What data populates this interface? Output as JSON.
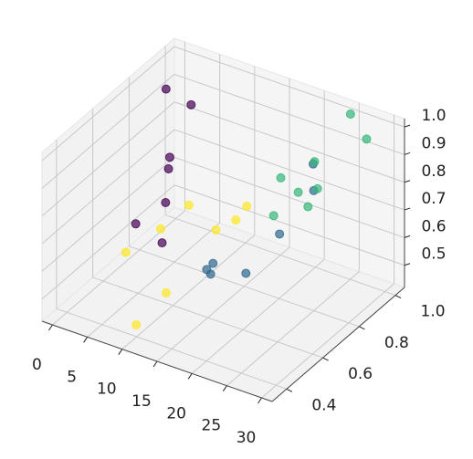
{
  "chart_data": {
    "type": "scatter3d",
    "xlim": [
      -1.5,
      31.5
    ],
    "ylim": [
      0.32,
      1.05
    ],
    "zlim": [
      0.42,
      1.03
    ],
    "xticks": [
      0,
      5,
      10,
      15,
      20,
      25,
      30
    ],
    "yticks": [
      0.4,
      0.6,
      0.8,
      {
        "value": 1.0,
        "label": "1.0"
      }
    ],
    "zticks": [
      0.5,
      0.6,
      0.7,
      0.8,
      0.9,
      {
        "value": 1.0,
        "label": "1.0"
      }
    ],
    "grid": true,
    "series": [
      {
        "color": "#fde725",
        "x": [
          10.2,
          4.8,
          12.4,
          5.9,
          6.3,
          12.0,
          11.2,
          10.7
        ],
        "y": [
          0.39,
          0.54,
          0.47,
          0.69,
          0.83,
          0.76,
          0.9,
          0.98
        ],
        "z": [
          0.47,
          0.6,
          0.56,
          0.61,
          0.62,
          0.62,
          0.57,
          0.57
        ]
      },
      {
        "color": "#440154",
        "x": [
          1.2,
          4.8,
          7.2,
          9.1,
          10.5,
          4.4,
          10.0
        ],
        "y": [
          0.9,
          0.9,
          0.69,
          0.61,
          0.54,
          0.61,
          0.54
        ],
        "z": [
          0.955,
          0.93,
          0.88,
          0.9,
          0.83,
          0.66,
          0.68
        ]
      },
      {
        "color": "#31688e",
        "x": [
          17.3,
          16.4,
          18.0,
          20.2,
          19.3,
          22.3,
          24.2
        ],
        "y": [
          0.54,
          0.54,
          0.5,
          0.61,
          0.83,
          0.9,
          0.83
        ],
        "z": [
          0.67,
          0.64,
          0.66,
          0.62,
          0.63,
          0.87,
          0.83
        ]
      },
      {
        "color": "#35b779",
        "x": [
          24.8,
          27.1,
          22.5,
          21.3,
          23.8,
          23.7,
          25.2,
          22.1
        ],
        "y": [
          1.01,
          1.01,
          0.9,
          0.76,
          0.76,
          0.87,
          0.76,
          0.69
        ],
        "z": [
          1.01,
          0.94,
          0.88,
          0.89,
          0.86,
          0.81,
          0.82,
          0.8
        ]
      }
    ]
  }
}
